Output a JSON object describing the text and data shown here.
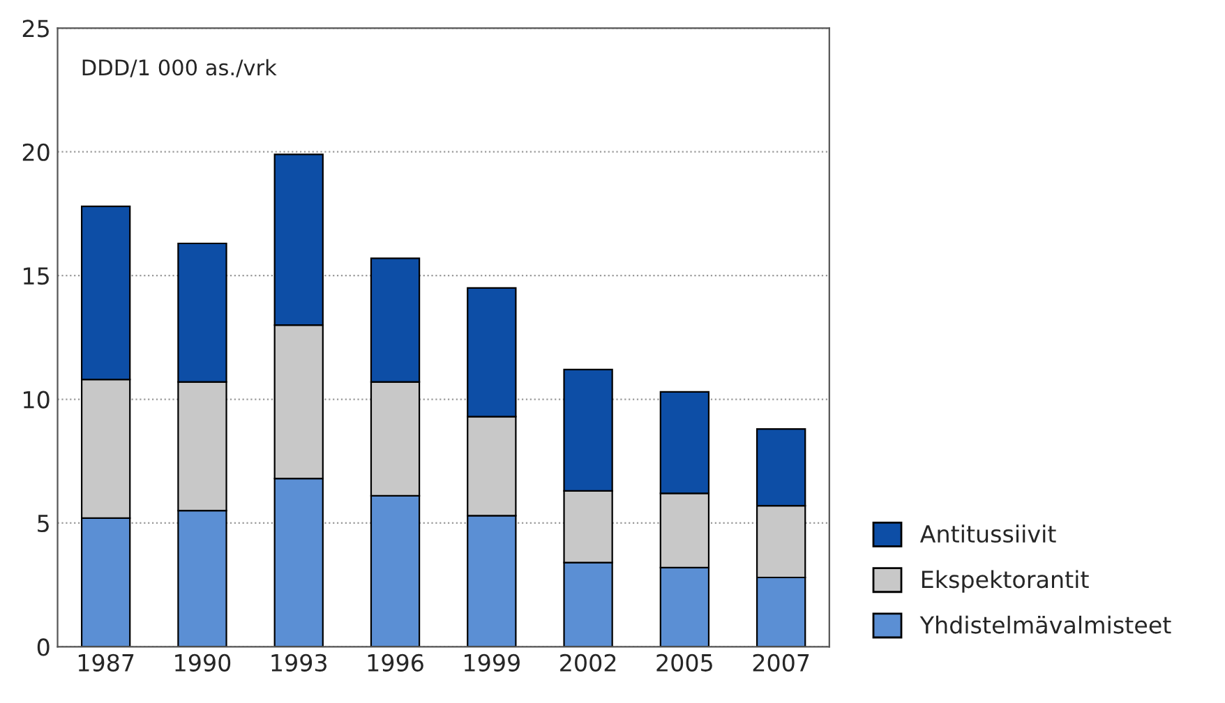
{
  "chart_data": {
    "type": "bar",
    "stacked": true,
    "categories": [
      "1987",
      "1990",
      "1993",
      "1996",
      "1999",
      "2002",
      "2005",
      "2007"
    ],
    "series": [
      {
        "name": "Yhdistelmävalmisteet",
        "color": "#5b8fd4",
        "values": [
          5.2,
          5.5,
          6.8,
          6.1,
          5.3,
          3.4,
          3.2,
          2.8
        ]
      },
      {
        "name": "Ekspektorantit",
        "color": "#c8c8c8",
        "values": [
          5.6,
          5.2,
          6.2,
          4.6,
          4.0,
          2.9,
          3.0,
          2.9
        ]
      },
      {
        "name": "Antitussiivit",
        "color": "#0d4ea6",
        "values": [
          7.0,
          5.6,
          6.9,
          5.0,
          5.2,
          4.9,
          4.1,
          3.1
        ]
      }
    ],
    "ylim": [
      0,
      25
    ],
    "yticks": [
      0,
      5,
      10,
      15,
      20,
      25
    ],
    "grid": "y",
    "legend": "bottom right",
    "annotations": [
      "DDD/1 000 as./vrk"
    ]
  }
}
